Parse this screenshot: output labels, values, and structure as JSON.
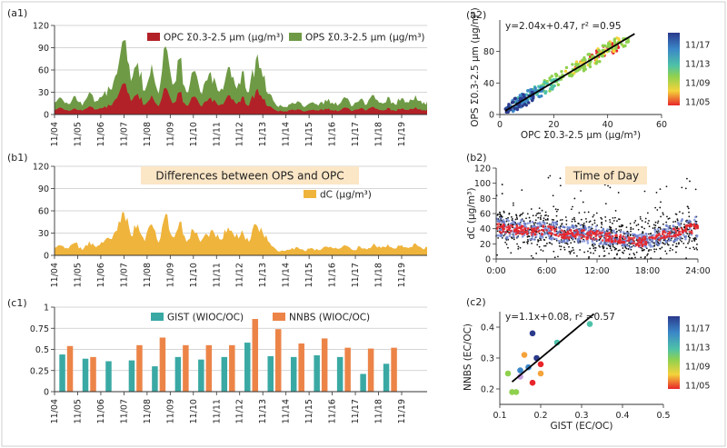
{
  "chart_data": [
    {
      "id": "a1",
      "panel_label": "(a1)",
      "type": "area",
      "xlabel": "",
      "ylabel": "",
      "xlim": [
        0,
        16.1
      ],
      "ylim": [
        0,
        120
      ],
      "yticks": [
        0,
        30,
        60,
        90,
        120
      ],
      "grid": true,
      "x_tick_labels": [
        "11/04",
        "11/05",
        "11/06",
        "11/07",
        "11/08",
        "11/09",
        "11/10",
        "11/11",
        "11/12",
        "11/13",
        "11/14",
        "11/15",
        "11/16",
        "11/17",
        "11/18",
        "11/19"
      ],
      "legend_position": "top-right",
      "x": [
        0,
        0.3,
        0.6,
        0.9,
        1.2,
        1.5,
        1.8,
        2.1,
        2.4,
        2.7,
        3.0,
        3.3,
        3.6,
        3.9,
        4.2,
        4.5,
        4.8,
        5.1,
        5.4,
        5.7,
        6.0,
        6.3,
        6.6,
        6.9,
        7.2,
        7.5,
        7.8,
        8.1,
        8.4,
        8.7,
        9.0,
        9.3,
        9.6,
        9.9,
        10.2,
        10.5,
        10.8,
        11.1,
        11.4,
        11.7,
        12.0,
        12.3,
        12.6,
        12.9,
        13.2,
        13.5,
        13.8,
        14.1,
        14.4,
        14.7,
        15.0,
        15.3,
        15.6,
        15.9,
        16.1
      ],
      "series": [
        {
          "name": "OPS Σ0.3-2.5 μm (μg/m³)",
          "color": "#6e9a45",
          "values": [
            16,
            22,
            14,
            25,
            12,
            30,
            18,
            26,
            34,
            55,
            100,
            45,
            70,
            32,
            68,
            28,
            92,
            40,
            75,
            30,
            58,
            30,
            46,
            50,
            35,
            64,
            40,
            58,
            30,
            74,
            50,
            28,
            12,
            10,
            14,
            18,
            10,
            16,
            12,
            20,
            16,
            14,
            22,
            12,
            20,
            14,
            26,
            16,
            24,
            14,
            22,
            16,
            26,
            14,
            18
          ]
        },
        {
          "name": "OPC Σ0.3-2.5 μm (μg/m³)",
          "color": "#b32128",
          "values": [
            6,
            9,
            5,
            8,
            5,
            11,
            7,
            9,
            12,
            22,
            42,
            18,
            28,
            13,
            26,
            11,
            36,
            15,
            30,
            12,
            24,
            12,
            18,
            20,
            14,
            26,
            16,
            24,
            12,
            32,
            20,
            11,
            5,
            4,
            6,
            7,
            4,
            6,
            5,
            8,
            6,
            5,
            9,
            5,
            8,
            6,
            10,
            6,
            9,
            5,
            8,
            6,
            10,
            5,
            7
          ]
        }
      ]
    },
    {
      "id": "a2",
      "panel_label": "(a2)",
      "type": "scatter",
      "xlabel": "OPC Σ0.3-2.5 μm (μg/m³)",
      "ylabel": "OPS Σ0.3-2.5 μm (μg/m³)",
      "xlim": [
        0,
        60
      ],
      "ylim": [
        0,
        120
      ],
      "xticks": [
        0,
        20,
        40,
        60
      ],
      "yticks": [
        0,
        40,
        80
      ],
      "annotation": "y=2.04x+0.47, r² =0.95",
      "fit": {
        "slope": 2.04,
        "intercept": 0.47,
        "x_range": [
          2,
          50
        ]
      },
      "colorbar": {
        "ticks": [
          "11/17",
          "11/13",
          "11/09",
          "11/05"
        ]
      },
      "clusters": [
        {
          "date_fraction": 0.05,
          "color": "#e8262b",
          "x_range": [
            28,
            44
          ],
          "y_range": [
            60,
            100
          ],
          "count": 30
        },
        {
          "date_fraction": 0.2,
          "color": "#f5d33b",
          "x_range": [
            24,
            46
          ],
          "y_range": [
            52,
            104
          ],
          "count": 40
        },
        {
          "date_fraction": 0.4,
          "color": "#8fd14f",
          "x_range": [
            12,
            48
          ],
          "y_range": [
            30,
            96
          ],
          "count": 110
        },
        {
          "date_fraction": 0.6,
          "color": "#4ec2a8",
          "x_range": [
            5,
            22
          ],
          "y_range": [
            8,
            44
          ],
          "count": 45
        },
        {
          "date_fraction": 0.8,
          "color": "#3a86c8",
          "x_range": [
            2,
            16
          ],
          "y_range": [
            4,
            34
          ],
          "count": 60
        },
        {
          "date_fraction": 1.0,
          "color": "#2b3a8c",
          "x_range": [
            2,
            13
          ],
          "y_range": [
            3,
            28
          ],
          "count": 40
        }
      ]
    },
    {
      "id": "b1",
      "panel_label": "(b1)",
      "type": "area",
      "title": "Differences between OPS and OPC",
      "xlim": [
        0,
        16.1
      ],
      "ylim": [
        0,
        120
      ],
      "yticks": [
        0,
        30,
        60,
        90,
        120
      ],
      "grid": true,
      "x_tick_labels": [
        "11/04",
        "11/05",
        "11/06",
        "11/07",
        "11/08",
        "11/09",
        "11/10",
        "11/11",
        "11/12",
        "11/13",
        "11/14",
        "11/15",
        "11/16",
        "11/17",
        "11/18",
        "11/19"
      ],
      "legend_position": "right",
      "series": [
        {
          "name": "dC (μg/m³)",
          "color": "#efb43c",
          "values": [
            10,
            13,
            9,
            17,
            7,
            19,
            11,
            17,
            22,
            33,
            58,
            27,
            42,
            19,
            42,
            17,
            56,
            25,
            45,
            18,
            34,
            18,
            28,
            30,
            21,
            38,
            24,
            34,
            18,
            42,
            30,
            17,
            7,
            6,
            8,
            11,
            6,
            10,
            7,
            12,
            10,
            9,
            13,
            7,
            12,
            8,
            16,
            10,
            15,
            9,
            14,
            10,
            16,
            9,
            11
          ]
        }
      ]
    },
    {
      "id": "b2",
      "panel_label": "(b2)",
      "type": "scatter",
      "title": "Time of Day",
      "xlabel": "",
      "ylabel": "dC (μg/m³)",
      "xlim": [
        0,
        24
      ],
      "ylim": [
        0,
        120
      ],
      "yticks": [
        0,
        20,
        40,
        60,
        80,
        100,
        120
      ],
      "x_tick_labels": [
        "0:00",
        "6:00",
        "12:00",
        "18:00",
        "24:00"
      ],
      "series": [
        {
          "name": "mean",
          "color": "#e8262b",
          "values_hourly": [
            41,
            40,
            39,
            38,
            37,
            38,
            38,
            36,
            33,
            32,
            33,
            32,
            31,
            30,
            28,
            26,
            23,
            22,
            24,
            27,
            31,
            34,
            37,
            40,
            40
          ]
        },
        {
          "name": "band_low",
          "color": "#6a7fd0",
          "values_hourly": [
            28,
            27,
            26,
            26,
            25,
            26,
            26,
            24,
            22,
            21,
            22,
            21,
            20,
            19,
            18,
            16,
            14,
            14,
            15,
            17,
            20,
            22,
            24,
            27,
            27
          ]
        },
        {
          "name": "band_high",
          "color": "#6a7fd0",
          "values_hourly": [
            56,
            55,
            53,
            51,
            50,
            51,
            51,
            49,
            45,
            44,
            45,
            44,
            43,
            41,
            38,
            36,
            33,
            32,
            35,
            39,
            44,
            48,
            52,
            56,
            56
          ]
        }
      ]
    },
    {
      "id": "c1",
      "panel_label": "(c1)",
      "type": "bar",
      "xlim": [
        0,
        16.1
      ],
      "ylim": [
        0,
        1.0
      ],
      "yticks": [
        "0",
        "0.25",
        "0.5",
        "0.75",
        "1"
      ],
      "grid": true,
      "categories": [
        "11/04",
        "11/05",
        "11/06",
        "11/07",
        "11/08",
        "11/09",
        "11/10",
        "11/11",
        "11/12",
        "11/13",
        "11/14",
        "11/15",
        "11/16",
        "11/17",
        "11/18",
        "11/19"
      ],
      "series": [
        {
          "name": "GIST (WIOC/OC)",
          "color": "#3aa9a4",
          "values": [
            0.44,
            0.39,
            0.36,
            0.37,
            0.3,
            0.41,
            0.38,
            0.41,
            0.58,
            0.42,
            0.41,
            0.43,
            0.41,
            0.21,
            0.33,
            null
          ]
        },
        {
          "name": "NNBS (WIOC/OC)",
          "color": "#ec8448",
          "values": [
            0.54,
            0.41,
            null,
            0.55,
            0.64,
            0.55,
            0.55,
            0.55,
            0.86,
            0.74,
            0.57,
            0.63,
            0.52,
            0.51,
            0.52,
            null
          ]
        }
      ]
    },
    {
      "id": "c2",
      "panel_label": "(c2)",
      "type": "scatter",
      "xlabel": "GIST (EC/OC)",
      "ylabel": "NNBS (EC/OC)",
      "xlim": [
        0.1,
        0.5
      ],
      "ylim": [
        0.15,
        0.45
      ],
      "xticks": [
        "0.1",
        "0.2",
        "0.3",
        "0.4",
        "0.5"
      ],
      "yticks": [
        "0.2",
        "0.3",
        "0.4"
      ],
      "annotation": "y=1.1x+0.08, r² =0.57",
      "fit": {
        "slope": 1.1,
        "intercept": 0.08,
        "x_range": [
          0.13,
          0.33
        ]
      },
      "colorbar": {
        "ticks": [
          "11/17",
          "11/13",
          "11/09",
          "11/05"
        ]
      },
      "points": [
        {
          "x": 0.18,
          "y": 0.38,
          "color": "#2b3a8c"
        },
        {
          "x": 0.32,
          "y": 0.41,
          "color": "#4ec2a8"
        },
        {
          "x": 0.24,
          "y": 0.35,
          "color": "#4ec2a8"
        },
        {
          "x": 0.16,
          "y": 0.31,
          "color": "#f5a33b"
        },
        {
          "x": 0.19,
          "y": 0.3,
          "color": "#2b3a8c"
        },
        {
          "x": 0.2,
          "y": 0.28,
          "color": "#e8262b"
        },
        {
          "x": 0.17,
          "y": 0.27,
          "color": "#3a86c8"
        },
        {
          "x": 0.15,
          "y": 0.26,
          "color": "#3a86c8"
        },
        {
          "x": 0.2,
          "y": 0.25,
          "color": "#f5a33b"
        },
        {
          "x": 0.12,
          "y": 0.25,
          "color": "#8fd14f"
        },
        {
          "x": 0.15,
          "y": 0.24,
          "color": "#c79be0"
        },
        {
          "x": 0.18,
          "y": 0.22,
          "color": "#e8262b"
        },
        {
          "x": 0.14,
          "y": 0.19,
          "color": "#8fd14f"
        },
        {
          "x": 0.13,
          "y": 0.19,
          "color": "#8fd14f"
        }
      ]
    }
  ]
}
